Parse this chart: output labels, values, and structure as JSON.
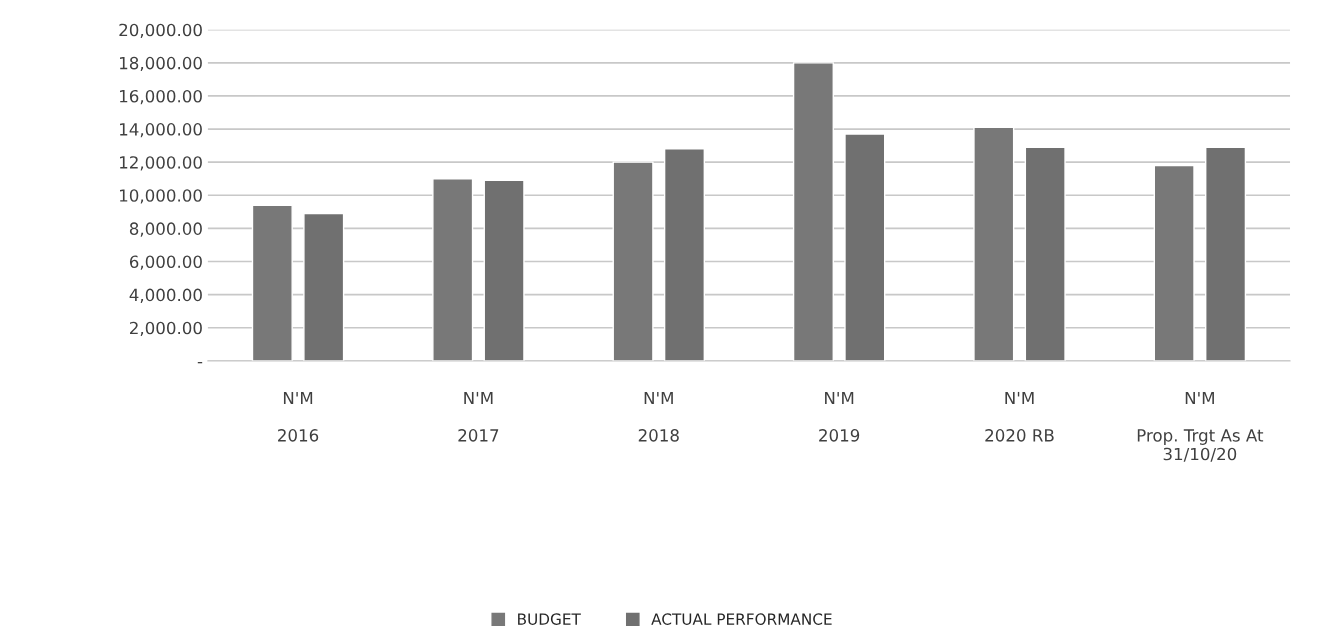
{
  "chart_data": {
    "type": "bar",
    "categories": [
      "N'M\n\n2016",
      "N'M\n\n2017",
      "N'M\n\n2018",
      "N'M\n\n2019",
      "N'M\n\n2020 RB",
      "N'M\n\nProp. Trgt As At\n31/10/20"
    ],
    "series": [
      {
        "name": "BUDGET",
        "color": "#787878",
        "values": [
          9400,
          11000,
          12000,
          18000,
          14100,
          11800
        ]
      },
      {
        "name": "ACTUAL PERFORMANCE",
        "color": "#707070",
        "values": [
          8900,
          10900,
          12800,
          13700,
          12900,
          12900
        ]
      }
    ],
    "ylim": [
      0,
      20000
    ],
    "yticks": [
      {
        "value": 0,
        "label": "-"
      },
      {
        "value": 2000,
        "label": "2,000.00"
      },
      {
        "value": 4000,
        "label": "4,000.00"
      },
      {
        "value": 6000,
        "label": "6,000.00"
      },
      {
        "value": 8000,
        "label": "8,000.00"
      },
      {
        "value": 10000,
        "label": "10,000.00"
      },
      {
        "value": 12000,
        "label": "12,000.00"
      },
      {
        "value": 14000,
        "label": "14,000.00"
      },
      {
        "value": 16000,
        "label": "16,000.00"
      },
      {
        "value": 18000,
        "label": "18,000.00"
      },
      {
        "value": 20000,
        "label": "20,000.00"
      }
    ],
    "grid": "y",
    "legend": "bottom"
  }
}
